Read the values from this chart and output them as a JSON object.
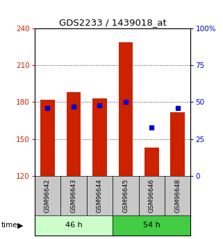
{
  "title": "GDS2233 / 1439018_at",
  "samples": [
    "GSM96642",
    "GSM96643",
    "GSM96644",
    "GSM96645",
    "GSM96646",
    "GSM96648"
  ],
  "counts": [
    182,
    188,
    183,
    229,
    143,
    172
  ],
  "percentile_ranks": [
    46,
    47,
    48,
    50,
    33,
    46
  ],
  "groups": [
    {
      "label": "46 h",
      "indices": [
        0,
        1,
        2
      ],
      "color": "#ccffcc"
    },
    {
      "label": "54 h",
      "indices": [
        3,
        4,
        5
      ],
      "color": "#44cc44"
    }
  ],
  "ylim_left": [
    120,
    240
  ],
  "ylim_right": [
    0,
    100
  ],
  "yticks_left": [
    120,
    150,
    180,
    210,
    240
  ],
  "yticks_right": [
    0,
    25,
    50,
    75,
    100
  ],
  "bar_color": "#cc2200",
  "bar_bottom": 120,
  "marker_color": "#0000cc",
  "title_color": "#000000",
  "left_axis_color": "#cc2200",
  "right_axis_color": "#0000cc",
  "grid_color": "#333333",
  "background_color": "#ffffff",
  "plot_bg_color": "#ffffff",
  "sample_box_color": "#c8c8c8",
  "legend_square_red": "#cc2200",
  "legend_square_blue": "#0000cc"
}
